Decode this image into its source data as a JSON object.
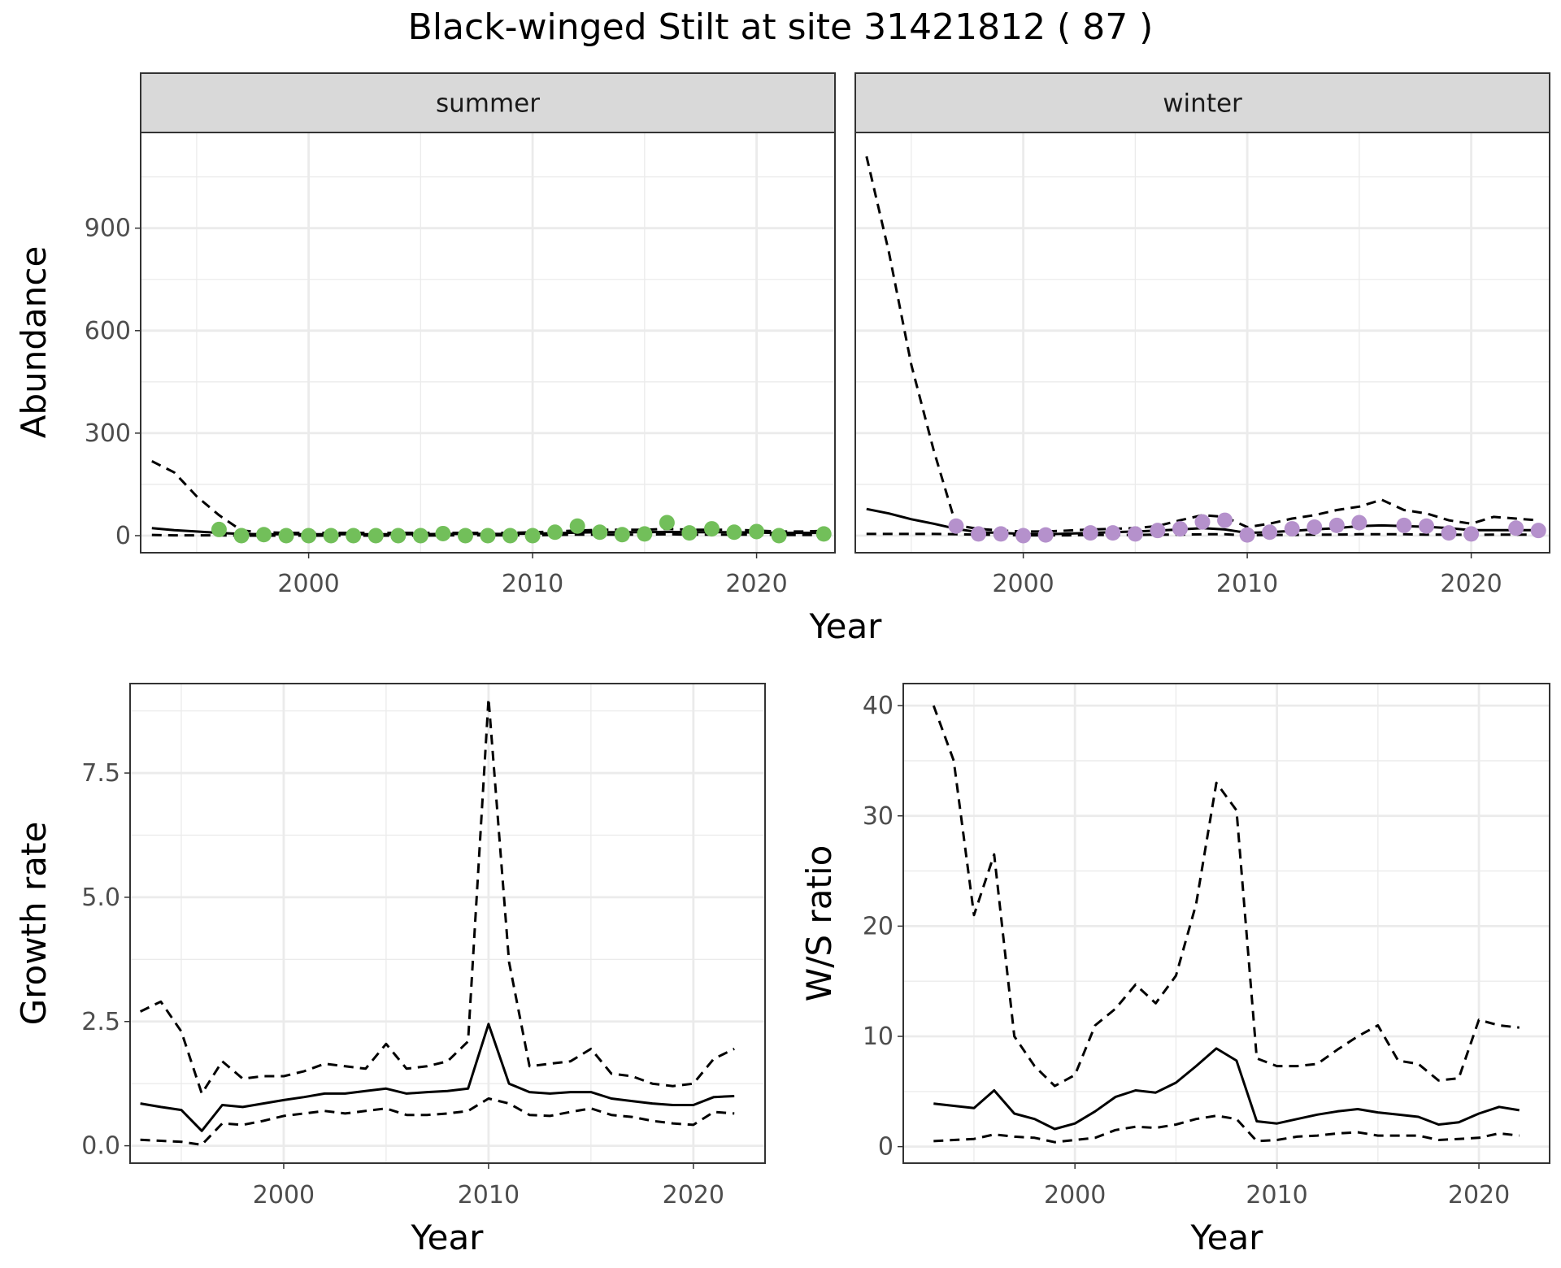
{
  "title": "Black-winged Stilt at site 31421812 ( 87 )",
  "colors": {
    "summer_points": "#72bf5a",
    "winter_points": "#b591cc",
    "grid": "#ebebeb",
    "strip_bg": "#d9d9d9",
    "line": "#000000"
  },
  "chart_data": [
    {
      "id": "abundance",
      "type": "line",
      "xlabel": "Year",
      "ylabel": "Abundance",
      "xlim": [
        1992.5,
        2023.5
      ],
      "ylim": [
        -50,
        1180
      ],
      "xticks": [
        2000,
        2010,
        2020
      ],
      "yticks": [
        0,
        300,
        600,
        900
      ],
      "grid": true,
      "panels": [
        {
          "strip": "summer",
          "point_color": "#72bf5a",
          "x": [
            1993,
            1994,
            1995,
            1996,
            1997,
            1998,
            1999,
            2000,
            2001,
            2002,
            2003,
            2004,
            2005,
            2006,
            2007,
            2008,
            2009,
            2010,
            2011,
            2012,
            2013,
            2014,
            2015,
            2016,
            2017,
            2018,
            2019,
            2020,
            2021,
            2022,
            2023
          ],
          "series": [
            {
              "style": "solid",
              "values": [
                22,
                16,
                12,
                8,
                5,
                4,
                4,
                4,
                4,
                4,
                4,
                4,
                4,
                5,
                5,
                5,
                5,
                6,
                7,
                9,
                10,
                10,
                10,
                11,
                10,
                10,
                10,
                9,
                8,
                8,
                8
              ]
            },
            {
              "style": "dashed",
              "values": [
                218,
                185,
                115,
                60,
                15,
                10,
                8,
                8,
                8,
                8,
                8,
                8,
                8,
                8,
                8,
                8,
                8,
                10,
                12,
                15,
                17,
                17,
                17,
                20,
                17,
                17,
                17,
                15,
                12,
                12,
                14
              ]
            },
            {
              "style": "dashed",
              "values": [
                2,
                1,
                1,
                1,
                0,
                0,
                0,
                0,
                0,
                0,
                0,
                0,
                0,
                1,
                1,
                1,
                1,
                1,
                2,
                3,
                3,
                3,
                3,
                4,
                3,
                3,
                3,
                3,
                2,
                2,
                2
              ]
            }
          ],
          "points": {
            "x": [
              1996,
              1997,
              1998,
              1999,
              2000,
              2001,
              2002,
              2003,
              2004,
              2005,
              2006,
              2007,
              2008,
              2009,
              2010,
              2011,
              2012,
              2013,
              2014,
              2015,
              2016,
              2017,
              2018,
              2019,
              2020,
              2021,
              2023
            ],
            "y": [
              18,
              0,
              3,
              0,
              0,
              0,
              0,
              0,
              0,
              0,
              6,
              0,
              0,
              0,
              0,
              10,
              28,
              10,
              3,
              5,
              38,
              8,
              20,
              10,
              12,
              0,
              5
            ]
          }
        },
        {
          "strip": "winter",
          "point_color": "#b591cc",
          "x": [
            1993,
            1994,
            1995,
            1996,
            1997,
            1998,
            1999,
            2000,
            2001,
            2002,
            2003,
            2004,
            2005,
            2006,
            2007,
            2008,
            2009,
            2010,
            2011,
            2012,
            2013,
            2014,
            2015,
            2016,
            2017,
            2018,
            2019,
            2020,
            2021,
            2022,
            2023
          ],
          "series": [
            {
              "style": "solid",
              "values": [
                78,
                65,
                48,
                35,
                20,
                10,
                8,
                5,
                4,
                6,
                8,
                10,
                12,
                15,
                18,
                22,
                18,
                8,
                10,
                14,
                18,
                22,
                28,
                30,
                28,
                26,
                22,
                16,
                16,
                16,
                16
              ]
            },
            {
              "style": "dashed",
              "values": [
                1110,
                830,
                500,
                250,
                30,
                20,
                15,
                12,
                12,
                15,
                18,
                20,
                22,
                28,
                45,
                60,
                55,
                25,
                35,
                50,
                60,
                75,
                85,
                105,
                75,
                65,
                45,
                35,
                55,
                50,
                45
              ]
            },
            {
              "style": "dashed",
              "values": [
                5,
                5,
                5,
                5,
                4,
                3,
                2,
                1,
                1,
                1,
                2,
                2,
                2,
                3,
                3,
                4,
                4,
                1,
                2,
                2,
                3,
                3,
                4,
                4,
                4,
                3,
                3,
                2,
                3,
                3,
                3
              ]
            }
          ],
          "points": {
            "x": [
              1997,
              1998,
              1999,
              2000,
              2001,
              2003,
              2004,
              2005,
              2006,
              2007,
              2008,
              2009,
              2010,
              2011,
              2012,
              2013,
              2014,
              2015,
              2017,
              2018,
              2019,
              2020,
              2022,
              2023
            ],
            "y": [
              28,
              5,
              5,
              0,
              2,
              8,
              8,
              5,
              15,
              20,
              40,
              45,
              2,
              10,
              20,
              25,
              30,
              38,
              30,
              28,
              8,
              5,
              22,
              15
            ]
          }
        }
      ]
    },
    {
      "id": "growth",
      "type": "line",
      "xlabel": "Year",
      "ylabel": "Growth rate",
      "xlim": [
        1992.5,
        2023.5
      ],
      "ylim": [
        -0.35,
        9.3
      ],
      "xticks": [
        2000,
        2010,
        2020
      ],
      "yticks": [
        0.0,
        2.5,
        5.0,
        7.5
      ],
      "ytick_labels": [
        "0.0",
        "2.5",
        "5.0",
        "7.5"
      ],
      "grid": true,
      "x": [
        1993,
        1994,
        1995,
        1996,
        1997,
        1998,
        1999,
        2000,
        2001,
        2002,
        2003,
        2004,
        2005,
        2006,
        2007,
        2008,
        2009,
        2010,
        2011,
        2012,
        2013,
        2014,
        2015,
        2016,
        2017,
        2018,
        2019,
        2020,
        2021,
        2022
      ],
      "series": [
        {
          "style": "solid",
          "values": [
            0.85,
            0.78,
            0.72,
            0.3,
            0.82,
            0.78,
            0.85,
            0.92,
            0.98,
            1.05,
            1.05,
            1.1,
            1.15,
            1.05,
            1.08,
            1.1,
            1.15,
            2.45,
            1.25,
            1.08,
            1.05,
            1.08,
            1.08,
            0.95,
            0.9,
            0.85,
            0.82,
            0.82,
            0.98,
            1.0
          ]
        },
        {
          "style": "dashed",
          "values": [
            2.7,
            2.9,
            2.3,
            1.05,
            1.7,
            1.35,
            1.4,
            1.4,
            1.5,
            1.65,
            1.6,
            1.55,
            2.05,
            1.55,
            1.6,
            1.7,
            2.1,
            9.0,
            3.7,
            1.6,
            1.65,
            1.7,
            1.95,
            1.45,
            1.4,
            1.25,
            1.2,
            1.25,
            1.75,
            1.95
          ]
        },
        {
          "style": "dashed",
          "values": [
            0.12,
            0.1,
            0.08,
            0.02,
            0.45,
            0.42,
            0.5,
            0.6,
            0.65,
            0.7,
            0.65,
            0.7,
            0.75,
            0.62,
            0.62,
            0.65,
            0.7,
            0.95,
            0.85,
            0.62,
            0.6,
            0.68,
            0.75,
            0.62,
            0.58,
            0.5,
            0.45,
            0.42,
            0.68,
            0.65
          ]
        }
      ]
    },
    {
      "id": "ws_ratio",
      "type": "line",
      "xlabel": "Year",
      "ylabel": "W/S ratio",
      "xlim": [
        1991.5,
        2023.5
      ],
      "ylim": [
        -1.5,
        42
      ],
      "xticks": [
        2000,
        2010,
        2020
      ],
      "yticks": [
        0,
        10,
        20,
        30,
        40
      ],
      "grid": true,
      "x": [
        1993,
        1994,
        1995,
        1996,
        1997,
        1998,
        1999,
        2000,
        2001,
        2002,
        2003,
        2004,
        2005,
        2006,
        2007,
        2008,
        2009,
        2010,
        2011,
        2012,
        2013,
        2014,
        2015,
        2016,
        2017,
        2018,
        2019,
        2020,
        2021,
        2022
      ],
      "series": [
        {
          "style": "solid",
          "values": [
            3.9,
            3.7,
            3.5,
            5.1,
            3.0,
            2.5,
            1.6,
            2.1,
            3.2,
            4.5,
            5.1,
            4.9,
            5.8,
            7.3,
            8.9,
            7.8,
            2.3,
            2.1,
            2.5,
            2.9,
            3.2,
            3.4,
            3.1,
            2.9,
            2.7,
            2.0,
            2.2,
            3.0,
            3.6,
            3.3
          ]
        },
        {
          "style": "dashed",
          "values": [
            40,
            35,
            21,
            26.5,
            10,
            7.3,
            5.5,
            6.5,
            11,
            12.5,
            14.7,
            13,
            15.5,
            22,
            33,
            30.5,
            8,
            7.3,
            7.3,
            7.5,
            8.8,
            10,
            11,
            7.8,
            7.5,
            6.0,
            6.2,
            11.5,
            11,
            10.8
          ]
        },
        {
          "style": "dashed",
          "values": [
            0.5,
            0.6,
            0.7,
            1.1,
            0.9,
            0.8,
            0.4,
            0.6,
            0.8,
            1.5,
            1.8,
            1.7,
            2.0,
            2.5,
            2.8,
            2.5,
            0.5,
            0.6,
            0.9,
            1.0,
            1.2,
            1.3,
            1.0,
            1.0,
            1.0,
            0.6,
            0.7,
            0.8,
            1.2,
            1.0
          ]
        }
      ]
    }
  ]
}
